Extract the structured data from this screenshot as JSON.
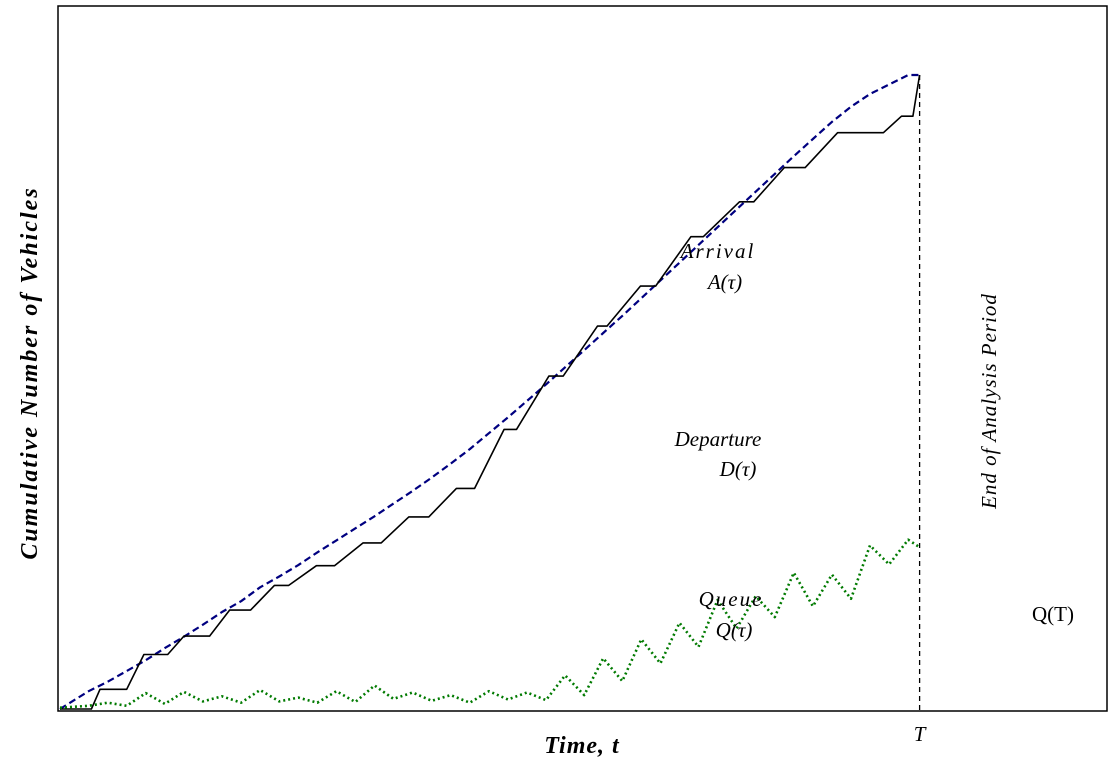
{
  "chart_data": {
    "type": "line",
    "title": "",
    "xlabel": "Time, t",
    "ylabel": "Cumulative Number of Vehicles",
    "xlim": [
      0,
      100
    ],
    "ylim": [
      0,
      100
    ],
    "grid": false,
    "legend": "none",
    "x_ticks": [
      {
        "x": 90.2,
        "label": "T"
      }
    ],
    "series": [
      {
        "color": "#000080",
        "style": "dashed",
        "x": [
          0,
          3,
          5,
          7,
          9,
          11,
          13,
          15,
          17,
          19,
          21,
          23,
          25,
          27,
          29,
          31,
          33,
          35,
          37,
          39,
          41,
          43,
          45,
          47,
          49,
          51,
          53,
          55,
          57,
          59,
          61,
          63,
          65,
          67,
          69,
          71,
          73,
          75,
          77,
          79,
          81,
          83,
          85,
          87,
          89,
          90.2
        ],
        "y": [
          0,
          2.8,
          4.3,
          6.0,
          7.7,
          9.6,
          11.4,
          13.3,
          15.3,
          17.0,
          19.2,
          20.9,
          22.7,
          24.7,
          26.6,
          28.5,
          30.4,
          32.4,
          34.4,
          36.5,
          38.7,
          41.0,
          43.5,
          46.0,
          48.6,
          51.2,
          53.9,
          56.6,
          59.3,
          62.0,
          64.8,
          67.6,
          70.4,
          73.2,
          76.0,
          78.8,
          81.6,
          84.4,
          87.2,
          89.9,
          92.6,
          95.0,
          97.0,
          98.5,
          100.0,
          100.0
        ]
      },
      {
        "color": "#000000",
        "style": "solid",
        "x": [
          0,
          3.3,
          4.2,
          7.0,
          8.8,
          11.3,
          13.0,
          15.7,
          17.8,
          20.0,
          22.5,
          24.0,
          26.9,
          28.8,
          31.8,
          33.7,
          36.6,
          38.7,
          41.6,
          43.5,
          46.6,
          47.9,
          51.3,
          52.8,
          56.4,
          57.4,
          60.9,
          62.5,
          66.2,
          67.5,
          71.3,
          72.8,
          76.0,
          78.2,
          81.6,
          83.5,
          86.4,
          88.3,
          89.5,
          90.2
        ],
        "y": [
          0,
          0,
          3.1,
          3.1,
          8.6,
          8.6,
          11.5,
          11.5,
          15.6,
          15.6,
          19.5,
          19.5,
          22.6,
          22.6,
          26.2,
          26.2,
          30.3,
          30.3,
          34.8,
          34.8,
          44.1,
          44.1,
          52.5,
          52.5,
          60.4,
          60.4,
          66.7,
          66.7,
          74.5,
          74.5,
          80.0,
          80.0,
          85.4,
          85.4,
          90.9,
          90.9,
          90.9,
          93.5,
          93.5,
          100.0
        ]
      },
      {
        "color": "#007a00",
        "style": "dotted",
        "x": [
          0,
          3,
          5,
          7,
          9,
          11,
          13,
          15,
          17,
          19,
          21,
          23,
          25,
          27,
          29,
          31,
          33,
          35,
          37,
          39,
          41,
          43,
          45,
          47,
          49,
          51,
          53,
          55,
          57,
          59,
          61,
          63,
          65,
          67,
          69,
          71,
          73,
          75,
          77,
          79,
          81,
          83,
          85,
          87,
          89,
          90.2
        ],
        "y": [
          0.2,
          0.5,
          1.0,
          0.5,
          2.5,
          0.8,
          2.7,
          1.2,
          2.0,
          1.0,
          3.0,
          1.2,
          1.8,
          1.0,
          2.8,
          1.1,
          3.7,
          1.6,
          2.6,
          1.3,
          2.2,
          1.0,
          2.8,
          1.5,
          2.6,
          1.4,
          5.3,
          2.2,
          8.0,
          4.4,
          11.0,
          7.2,
          13.6,
          9.8,
          17.2,
          12.7,
          17.8,
          14.5,
          21.5,
          16.2,
          21.2,
          17.4,
          25.8,
          22.8,
          26.7,
          25.5
        ]
      }
    ],
    "annotations": {
      "arrival_1": "Arrival",
      "arrival_2": "A(τ)",
      "departure_1": "Departure",
      "departure_2": "D(τ)",
      "queue_1": "Queue",
      "queue_2": "Q(τ)",
      "q_end": "Q(T)",
      "end_period": "End of Analysis Period"
    }
  }
}
